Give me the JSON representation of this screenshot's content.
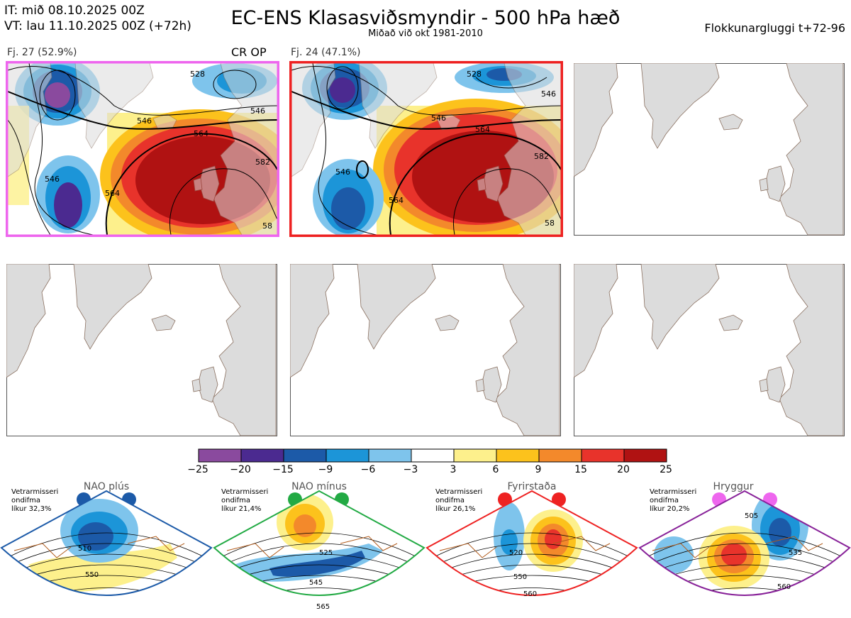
{
  "header": {
    "it_line": "IT: mið 08.10.2025 00Z",
    "vt_line": "VT: lau 11.10.2025 00Z  (+72h)",
    "title": "EC-ENS Klasasviðsmyndir - 500 hPa hæð",
    "subtitle": "Miðað við okt 1981-2010",
    "window_label": "Flokkunargluggi t+72-96"
  },
  "panels": [
    {
      "label": "Fj. 27 (52.9%)",
      "tag": "CR OP",
      "border_color": "#ee66ee",
      "contour_labels": [
        "546",
        "564",
        "582",
        "528",
        "546",
        "546",
        "564",
        "58"
      ]
    },
    {
      "label": "Fj. 24 (47.1%)",
      "tag": "",
      "border_color": "#ee2222",
      "contour_labels": [
        "546",
        "564",
        "582",
        "528",
        "546",
        "546",
        "564",
        "58"
      ]
    },
    {
      "label": "",
      "tag": ""
    },
    {
      "label": "",
      "tag": ""
    },
    {
      "label": "",
      "tag": ""
    },
    {
      "label": "",
      "tag": ""
    }
  ],
  "colorbar": {
    "colors": [
      "#8a4a9e",
      "#4b2a90",
      "#1c5aa8",
      "#1c95d8",
      "#7ec4ec",
      "#ffffff",
      "#fdf08c",
      "#fcc21c",
      "#f3892b",
      "#e8332b",
      "#b01212"
    ],
    "ticks": [
      "−25",
      "−20",
      "−15",
      "−9",
      "−6",
      "−3",
      "3",
      "6",
      "9",
      "15",
      "20",
      "25"
    ]
  },
  "regimes": [
    {
      "name": "NAO plús",
      "note_line1": "Vetrarmisseri",
      "note_line2": "ondifma",
      "note_line3": "líkur 32,3%",
      "dot_color": "#1c5aa8",
      "border_color": "#1c5aa8",
      "contour_labels": [
        "510",
        "550"
      ]
    },
    {
      "name": "NAO mínus",
      "note_line1": "Vetrarmisseri",
      "note_line2": "ondifma",
      "note_line3": "líkur 21,4%",
      "dot_color": "#22aa44",
      "border_color": "#22aa44",
      "contour_labels": [
        "525",
        "545",
        "565"
      ]
    },
    {
      "name": "Fyrirstaða",
      "note_line1": "Vetrarmisseri",
      "note_line2": "ondifma",
      "note_line3": "líkur 26,1%",
      "dot_color": "#ee2222",
      "border_color": "#ee2222",
      "contour_labels": [
        "520",
        "550",
        "560"
      ]
    },
    {
      "name": "Hryggur",
      "note_line1": "Vetrarmisseri",
      "note_line2": "ondifma",
      "note_line3": "líkur 20,2%",
      "dot_color": "#ee66ee",
      "border_color": "#882299",
      "contour_labels": [
        "505",
        "535",
        "560"
      ]
    }
  ]
}
